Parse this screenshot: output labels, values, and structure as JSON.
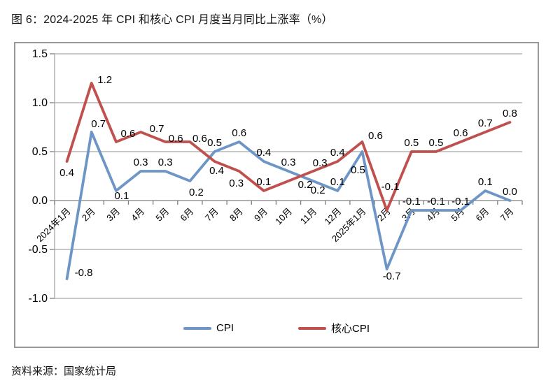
{
  "header": {
    "title": "图 6：2024-2025 年 CPI 和核心 CPI 月度当月同比上涨率（%）"
  },
  "footer": {
    "source": "资料来源：国家统计局"
  },
  "chart_data": {
    "type": "line",
    "title": "2024-2025 年 CPI 和核心 CPI 月度当月同比上涨率（%）",
    "categories": [
      "2024年1月",
      "2月",
      "3月",
      "4月",
      "5月",
      "6月",
      "7月",
      "8月",
      "9月",
      "10月",
      "11月",
      "12月",
      "2025年1月",
      "2月",
      "3月",
      "4月",
      "5月",
      "6月",
      "7月"
    ],
    "series": [
      {
        "name": "CPI",
        "color": "#6D96C6",
        "values": [
          -0.8,
          0.7,
          0.1,
          0.3,
          0.3,
          0.2,
          0.5,
          0.6,
          0.4,
          0.3,
          0.2,
          0.1,
          0.5,
          -0.7,
          -0.1,
          -0.1,
          -0.1,
          0.1,
          0.0
        ]
      },
      {
        "name": "核心CPI",
        "color": "#C0504D",
        "values": [
          0.4,
          1.2,
          0.6,
          0.7,
          0.6,
          0.6,
          0.4,
          0.3,
          0.1,
          0.2,
          0.3,
          0.4,
          0.6,
          -0.1,
          0.5,
          0.5,
          0.6,
          0.7,
          0.8
        ]
      }
    ],
    "ylim": [
      -1.0,
      1.5
    ],
    "ytick_step": 0.5,
    "ytick_labels": [
      "1.5",
      "1.0",
      "0.5",
      "0.0",
      "-0.5",
      "-1.0"
    ],
    "grid": true,
    "data_labels": true,
    "label_decimals": 1,
    "legend_position": "bottom",
    "grid_color": "#A6A6A6",
    "axis_color": "#808080"
  }
}
